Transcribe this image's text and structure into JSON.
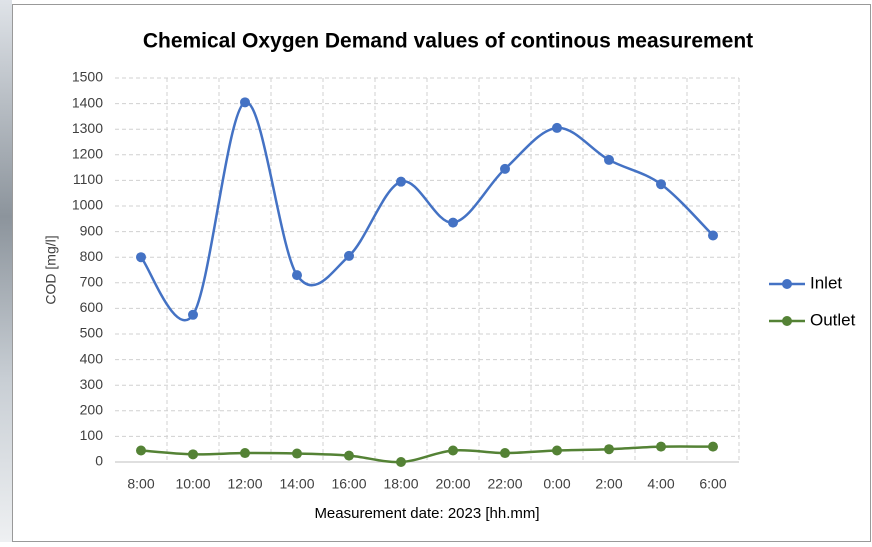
{
  "chart_data": {
    "type": "line",
    "title": "Chemical Oxygen Demand values of continous measurement",
    "x_label": "Measurement date: 2023 [hh.mm]",
    "y_label": "COD [mg/l]",
    "categories": [
      "8:00",
      "10:00",
      "12:00",
      "14:00",
      "16:00",
      "18:00",
      "20:00",
      "22:00",
      "0:00",
      "2:00",
      "4:00",
      "6:00"
    ],
    "series": [
      {
        "name": "Inlet",
        "color": "#4472c4",
        "values": [
          800,
          575,
          1405,
          730,
          805,
          1095,
          935,
          1145,
          1305,
          1180,
          1085,
          885
        ]
      },
      {
        "name": "Outlet",
        "color": "#548235",
        "values": [
          45,
          30,
          35,
          33,
          25,
          0,
          45,
          35,
          45,
          50,
          60,
          60
        ]
      }
    ],
    "ylim": [
      0,
      1500
    ],
    "yticks": [
      0,
      100,
      200,
      300,
      400,
      500,
      600,
      700,
      800,
      900,
      1000,
      1100,
      1200,
      1300,
      1400,
      1500
    ],
    "grid": true,
    "smooth": true,
    "legend": "right"
  }
}
